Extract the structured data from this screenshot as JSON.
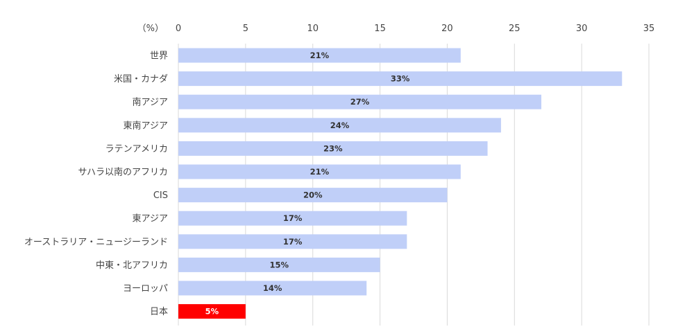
{
  "chart_data": {
    "type": "bar",
    "orientation": "horizontal",
    "unit_label": "（%）",
    "xlim": [
      0,
      35
    ],
    "x_ticks": [
      0,
      5,
      10,
      15,
      20,
      25,
      30,
      35
    ],
    "x_tick_labels": [
      "0",
      "5",
      "10",
      "15",
      "20",
      "25",
      "30",
      "35"
    ],
    "grid": true,
    "categories": [
      "世界",
      "米国・カナダ",
      "南アジア",
      "東南アジア",
      "ラテンアメリカ",
      "サハラ以南のアフリカ",
      "CIS",
      "東アジア",
      "オーストラリア・ニュージーランド",
      "中東・北アフリカ",
      "ヨーロッパ",
      "日本"
    ],
    "values": [
      21,
      33,
      27,
      24,
      23,
      21,
      20,
      17,
      17,
      15,
      14,
      5
    ],
    "data_labels": [
      "21%",
      "33%",
      "27%",
      "24%",
      "23%",
      "21%",
      "20%",
      "17%",
      "17%",
      "15%",
      "14%",
      "5%"
    ],
    "colors": {
      "bar": "#c0cff8",
      "highlight": "#ff0000",
      "highlight_label": "#ffffff",
      "label": "#333333",
      "grid": "#d9d9d9"
    },
    "highlight_category": "日本"
  }
}
